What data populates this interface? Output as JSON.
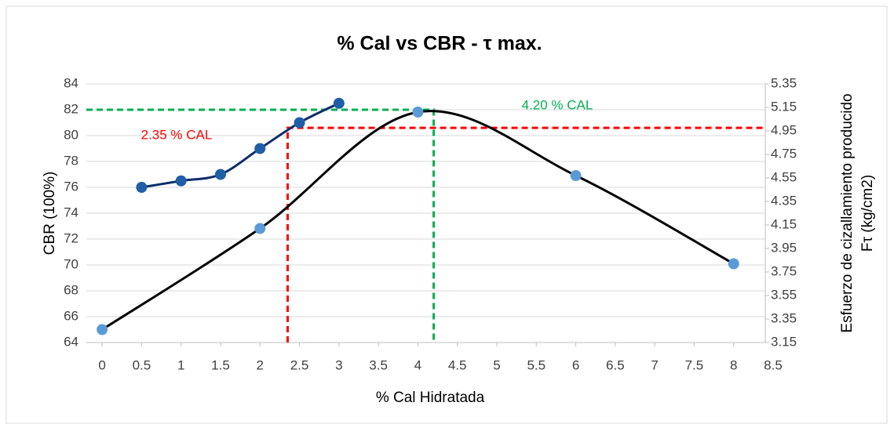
{
  "chart_data": {
    "type": "scatter",
    "title": "% Cal vs CBR - τ max.",
    "x_label": "% Cal Hidratada",
    "y_label": "CBR (100%)",
    "y2_label": [
      "Esfuerzo de cizallamiento producido",
      "Fτ (kg/cm2)"
    ],
    "xlim": [
      -0.2,
      8.5
    ],
    "xticks": [
      0,
      0.5,
      1,
      1.5,
      2,
      2.5,
      3,
      3.5,
      4,
      4.5,
      5,
      5.5,
      6,
      6.5,
      7,
      7.5,
      8,
      8.5
    ],
    "ylim": [
      64,
      84
    ],
    "yticks": [
      64,
      66,
      68,
      70,
      72,
      74,
      76,
      78,
      80,
      82,
      84
    ],
    "y2lim": [
      3.15,
      5.35
    ],
    "y2ticks": [
      3.15,
      3.35,
      3.55,
      3.75,
      3.95,
      4.15,
      4.35,
      4.55,
      4.75,
      4.95,
      5.15,
      5.35
    ],
    "grid": true,
    "series": [
      {
        "x": [
          0.5,
          1,
          1.5,
          2,
          2.5,
          3
        ],
        "values": [
          76,
          76.5,
          77,
          79,
          81,
          82.5
        ],
        "color": "#1f5fa8",
        "line_color": "#0d2d6b"
      },
      {
        "x": [
          0,
          2,
          4,
          6,
          8
        ],
        "values": [
          3.26,
          4.12,
          5.11,
          4.57,
          3.82
        ],
        "color": "#5b9bd5",
        "line_color": "#000000",
        "axis": "y2"
      }
    ],
    "annotations": [
      {
        "label": "2.35 % CAL",
        "x": 2.35,
        "y": 80.6,
        "color": "#ff0000"
      },
      {
        "label": "4.20 % CAL",
        "x": 4.2,
        "y": 82,
        "color": "#00b050"
      }
    ]
  }
}
